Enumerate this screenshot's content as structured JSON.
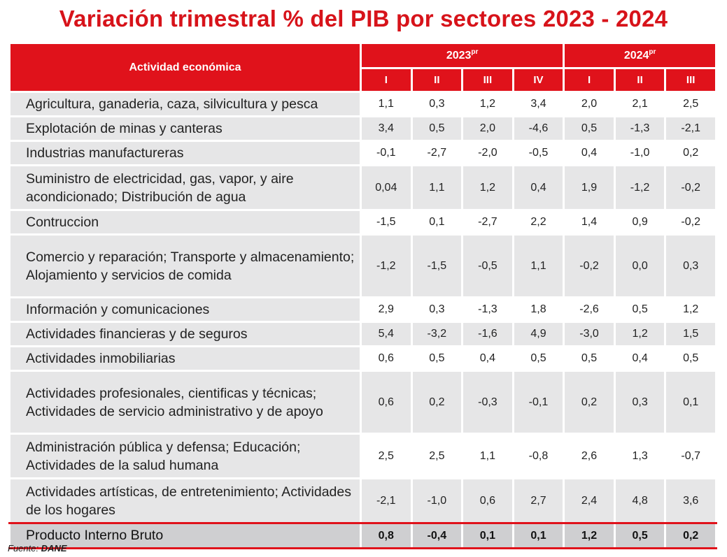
{
  "title": "Variación trimestral % del PIB por sectores 2023 - 2024",
  "source_label": "Fuente:",
  "source_value": "DANE",
  "chart_data": {
    "type": "table",
    "title": "Variación trimestral % del PIB por sectores 2023 - 2024",
    "row_header": "Actividad económica",
    "years": [
      {
        "label": "2023",
        "sup": "pr",
        "quarters": [
          "I",
          "II",
          "III",
          "IV"
        ]
      },
      {
        "label": "2024",
        "sup": "pr",
        "quarters": [
          "I",
          "II",
          "III"
        ]
      }
    ],
    "rows": [
      {
        "name": "Agricultura, ganaderia, caza, silvicultura y pesca",
        "values": [
          "1,1",
          "0,3",
          "1,2",
          "3,4",
          "2,0",
          "2,1",
          "2,5"
        ]
      },
      {
        "name": "Explotación de minas y canteras",
        "values": [
          "3,4",
          "0,5",
          "2,0",
          "-4,6",
          "0,5",
          "-1,3",
          "-2,1"
        ]
      },
      {
        "name": "Industrias manufactureras",
        "values": [
          "-0,1",
          "-2,7",
          "-2,0",
          "-0,5",
          "0,4",
          "-1,0",
          "0,2"
        ]
      },
      {
        "name": "Suministro de electricidad, gas, vapor, y aire acondicionado; Distribución de agua",
        "values": [
          "0,04",
          "1,1",
          "1,2",
          "0,4",
          "1,9",
          "-1,2",
          "-0,2"
        ]
      },
      {
        "name": "Contruccion",
        "values": [
          "-1,5",
          "0,1",
          "-2,7",
          "2,2",
          "1,4",
          "0,9",
          "-0,2"
        ]
      },
      {
        "name": "Comercio y reparación; Transporte y almacenamiento; Alojamiento y servicios de comida",
        "values": [
          "-1,2",
          "-1,5",
          "-0,5",
          "1,1",
          "-0,2",
          "0,0",
          "0,3"
        ]
      },
      {
        "name": "Información y comunicaciones",
        "values": [
          "2,9",
          "0,3",
          "-1,3",
          "1,8",
          "-2,6",
          "0,5",
          "1,2"
        ]
      },
      {
        "name": "Actividades financieras y de seguros",
        "values": [
          "5,4",
          "-3,2",
          "-1,6",
          "4,9",
          "-3,0",
          "1,2",
          "1,5"
        ]
      },
      {
        "name": "Actividades inmobiliarias",
        "values": [
          "0,6",
          "0,5",
          "0,4",
          "0,5",
          "0,5",
          "0,4",
          "0,5"
        ]
      },
      {
        "name": "Actividades profesionales, cientificas y técnicas; Actividades de servicio administrativo y de apoyo",
        "values": [
          "0,6",
          "0,2",
          "-0,3",
          "-0,1",
          "0,2",
          "0,3",
          "0,1"
        ]
      },
      {
        "name": "Administración pública y defensa; Educación; Actividades de la salud humana",
        "values": [
          "2,5",
          "2,5",
          "1,1",
          "-0,8",
          "2,6",
          "1,3",
          "-0,7"
        ]
      },
      {
        "name": "Actividades artísticas, de entretenimiento; Actividades de los hogares",
        "values": [
          "-2,1",
          "-1,0",
          "0,6",
          "2,7",
          "2,4",
          "4,8",
          "3,6"
        ]
      }
    ],
    "total": {
      "name": "Producto Interno Bruto",
      "values": [
        "0,8",
        "-0,4",
        "0,1",
        "0,1",
        "1,2",
        "0,5",
        "0,2"
      ]
    },
    "colors": {
      "accent": "#e0121b",
      "title": "#d7131a",
      "label_bg": "#e6e6e7",
      "total_bg": "#cfcfd1"
    }
  }
}
